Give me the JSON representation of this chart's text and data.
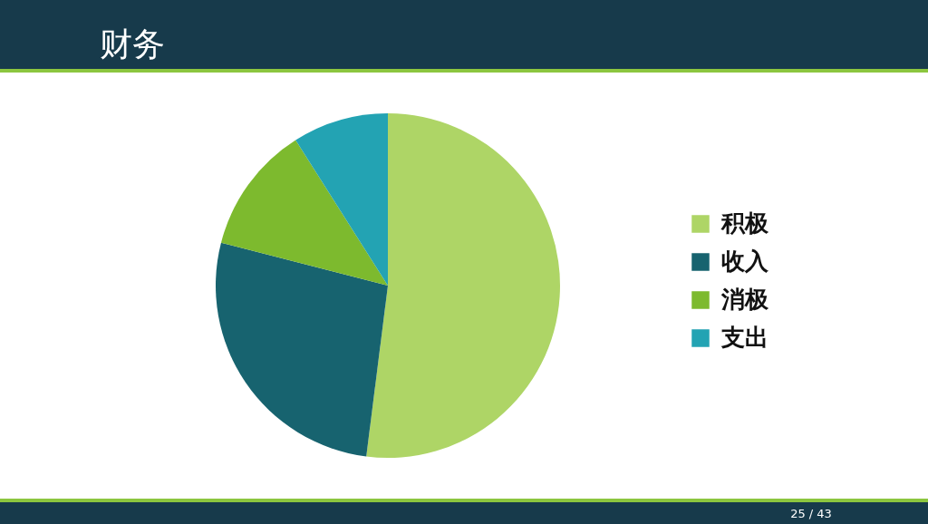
{
  "chart_data": {
    "type": "pie",
    "title": "财务",
    "categories": [
      "积极",
      "收入",
      "消极",
      "支出"
    ],
    "values": [
      52,
      27,
      12,
      9
    ],
    "colors": [
      "#aed566",
      "#17636f",
      "#7dba2e",
      "#23a3b3"
    ],
    "legend": "right",
    "annotations": [
      "25 / 43"
    ]
  }
}
